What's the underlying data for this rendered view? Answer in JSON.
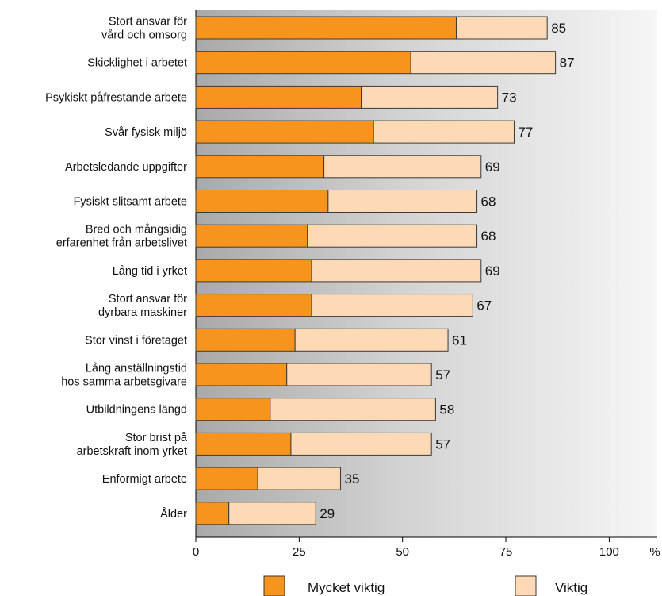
{
  "chart_data": {
    "type": "bar",
    "orientation": "horizontal",
    "stacked": true,
    "title": "",
    "xlabel": "",
    "ylabel": "",
    "unit": "%",
    "xlim": [
      0,
      110
    ],
    "xticks": [
      0,
      25,
      50,
      75,
      100
    ],
    "grid": false,
    "legend_position": "bottom",
    "categories": [
      "Stort ansvar för\nvård och omsorg",
      "Skicklighet i arbetet",
      "Psykiskt påfrestande arbete",
      "Svår fysisk miljö",
      "Arbetsledande uppgifter",
      "Fysiskt slitsamt arbete",
      "Bred och mångsidig\nerfarenhet från arbetslivet",
      "Lång tid i yrket",
      "Stort ansvar för\ndyrbara maskiner",
      "Stor vinst i företaget",
      "Lång anställningstid\nhos samma arbetsgivare",
      "Utbildningens längd",
      "Stor brist på\narbetskraft inom yrket",
      "Enformigt arbete",
      "Ålder"
    ],
    "series": [
      {
        "name": "Mycket viktig",
        "color": "#f7941d",
        "values": [
          63,
          52,
          40,
          43,
          31,
          32,
          27,
          28,
          28,
          24,
          22,
          18,
          23,
          15,
          8
        ]
      },
      {
        "name": "Viktig",
        "color": "#fdd9b5",
        "values": [
          22,
          35,
          33,
          34,
          38,
          36,
          41,
          41,
          39,
          37,
          35,
          40,
          34,
          20,
          21
        ]
      }
    ],
    "totals": [
      85,
      87,
      73,
      77,
      69,
      68,
      68,
      69,
      67,
      61,
      57,
      58,
      57,
      35,
      29
    ]
  }
}
